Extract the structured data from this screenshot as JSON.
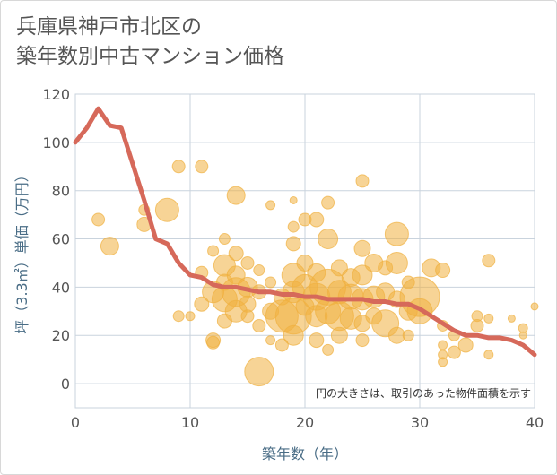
{
  "title_line1": "兵庫県神戸市北区の",
  "title_line2": "築年数別中古マンション価格",
  "chart_data": {
    "type": "scatter",
    "title": "兵庫県神戸市北区の築年数別中古マンション価格",
    "xlabel": "築年数（年）",
    "ylabel": "坪（3.3㎡）単価（万円）",
    "xlim": [
      0,
      40
    ],
    "ylim": [
      -10,
      120
    ],
    "xticks": [
      0,
      10,
      20,
      30,
      40
    ],
    "yticks": [
      0,
      20,
      40,
      60,
      80,
      100,
      120
    ],
    "grid": true,
    "note": "円の大きさは、取引のあった物件面積を示す",
    "colors": {
      "bubble": "#f0b040",
      "line": "#d6695a",
      "grid": "#c9d3dd"
    },
    "line": {
      "x": [
        0,
        1,
        2,
        3,
        4,
        5,
        6,
        7,
        8,
        9,
        10,
        11,
        12,
        13,
        14,
        15,
        16,
        17,
        18,
        19,
        20,
        21,
        22,
        23,
        24,
        25,
        26,
        27,
        28,
        29,
        30,
        31,
        32,
        33,
        34,
        35,
        36,
        37,
        38,
        39,
        40
      ],
      "y": [
        100,
        106,
        114,
        107,
        106,
        91,
        76,
        60,
        58,
        50,
        45,
        44,
        41,
        40,
        40,
        39,
        38,
        38,
        37,
        37,
        36,
        36,
        35,
        35,
        35,
        35,
        34,
        34,
        33,
        33,
        31,
        28,
        25,
        22,
        20,
        20,
        19,
        19,
        18,
        16,
        12
      ]
    },
    "bubbles": [
      {
        "x": 2,
        "y": 68,
        "s": 7
      },
      {
        "x": 3,
        "y": 57,
        "s": 10
      },
      {
        "x": 6,
        "y": 66,
        "s": 8
      },
      {
        "x": 6,
        "y": 72,
        "s": 6
      },
      {
        "x": 8,
        "y": 72,
        "s": 13
      },
      {
        "x": 9,
        "y": 90,
        "s": 7
      },
      {
        "x": 11,
        "y": 90,
        "s": 7
      },
      {
        "x": 9,
        "y": 28,
        "s": 6
      },
      {
        "x": 10,
        "y": 28,
        "s": 5
      },
      {
        "x": 11,
        "y": 33,
        "s": 8
      },
      {
        "x": 11,
        "y": 46,
        "s": 7
      },
      {
        "x": 12,
        "y": 55,
        "s": 6
      },
      {
        "x": 12,
        "y": 38,
        "s": 12
      },
      {
        "x": 12,
        "y": 18,
        "s": 8
      },
      {
        "x": 12,
        "y": 17,
        "s": 7
      },
      {
        "x": 13,
        "y": 49,
        "s": 12
      },
      {
        "x": 13,
        "y": 42,
        "s": 9
      },
      {
        "x": 13,
        "y": 35,
        "s": 14
      },
      {
        "x": 13,
        "y": 60,
        "s": 6
      },
      {
        "x": 13,
        "y": 26,
        "s": 8
      },
      {
        "x": 14,
        "y": 78,
        "s": 10
      },
      {
        "x": 14,
        "y": 54,
        "s": 8
      },
      {
        "x": 14,
        "y": 45,
        "s": 10
      },
      {
        "x": 14,
        "y": 38,
        "s": 16
      },
      {
        "x": 14,
        "y": 30,
        "s": 12
      },
      {
        "x": 15,
        "y": 50,
        "s": 7
      },
      {
        "x": 15,
        "y": 40,
        "s": 11
      },
      {
        "x": 15,
        "y": 33,
        "s": 9
      },
      {
        "x": 15,
        "y": 28,
        "s": 7
      },
      {
        "x": 16,
        "y": 47,
        "s": 6
      },
      {
        "x": 16,
        "y": 38,
        "s": 8
      },
      {
        "x": 16,
        "y": 24,
        "s": 7
      },
      {
        "x": 16,
        "y": 5,
        "s": 16
      },
      {
        "x": 17,
        "y": 74,
        "s": 5
      },
      {
        "x": 17,
        "y": 42,
        "s": 6
      },
      {
        "x": 17,
        "y": 30,
        "s": 9
      },
      {
        "x": 17,
        "y": 18,
        "s": 5
      },
      {
        "x": 18,
        "y": 36,
        "s": 9
      },
      {
        "x": 18,
        "y": 28,
        "s": 18
      },
      {
        "x": 18,
        "y": 16,
        "s": 7
      },
      {
        "x": 19,
        "y": 45,
        "s": 13
      },
      {
        "x": 19,
        "y": 38,
        "s": 12
      },
      {
        "x": 19,
        "y": 28,
        "s": 20
      },
      {
        "x": 19,
        "y": 20,
        "s": 11
      },
      {
        "x": 19,
        "y": 58,
        "s": 8
      },
      {
        "x": 19,
        "y": 65,
        "s": 6
      },
      {
        "x": 19,
        "y": 76,
        "s": 4
      },
      {
        "x": 20,
        "y": 50,
        "s": 9
      },
      {
        "x": 20,
        "y": 40,
        "s": 14
      },
      {
        "x": 20,
        "y": 32,
        "s": 10
      },
      {
        "x": 20,
        "y": 68,
        "s": 7
      },
      {
        "x": 21,
        "y": 68,
        "s": 8
      },
      {
        "x": 21,
        "y": 46,
        "s": 10
      },
      {
        "x": 21,
        "y": 36,
        "s": 15
      },
      {
        "x": 21,
        "y": 28,
        "s": 12
      },
      {
        "x": 21,
        "y": 18,
        "s": 8
      },
      {
        "x": 22,
        "y": 75,
        "s": 7
      },
      {
        "x": 22,
        "y": 60,
        "s": 11
      },
      {
        "x": 22,
        "y": 40,
        "s": 20
      },
      {
        "x": 22,
        "y": 30,
        "s": 14
      },
      {
        "x": 22,
        "y": 14,
        "s": 6
      },
      {
        "x": 23,
        "y": 48,
        "s": 9
      },
      {
        "x": 23,
        "y": 38,
        "s": 13
      },
      {
        "x": 23,
        "y": 28,
        "s": 16
      },
      {
        "x": 23,
        "y": 20,
        "s": 9
      },
      {
        "x": 24,
        "y": 44,
        "s": 10
      },
      {
        "x": 24,
        "y": 36,
        "s": 14
      },
      {
        "x": 24,
        "y": 27,
        "s": 12
      },
      {
        "x": 25,
        "y": 84,
        "s": 7
      },
      {
        "x": 25,
        "y": 56,
        "s": 9
      },
      {
        "x": 25,
        "y": 45,
        "s": 11
      },
      {
        "x": 25,
        "y": 35,
        "s": 12
      },
      {
        "x": 25,
        "y": 25,
        "s": 9
      },
      {
        "x": 25,
        "y": 18,
        "s": 7
      },
      {
        "x": 26,
        "y": 50,
        "s": 10
      },
      {
        "x": 26,
        "y": 36,
        "s": 12
      },
      {
        "x": 26,
        "y": 28,
        "s": 9
      },
      {
        "x": 27,
        "y": 48,
        "s": 8
      },
      {
        "x": 27,
        "y": 38,
        "s": 10
      },
      {
        "x": 27,
        "y": 25,
        "s": 15
      },
      {
        "x": 28,
        "y": 62,
        "s": 13
      },
      {
        "x": 28,
        "y": 50,
        "s": 12
      },
      {
        "x": 28,
        "y": 35,
        "s": 9
      },
      {
        "x": 28,
        "y": 20,
        "s": 9
      },
      {
        "x": 29,
        "y": 42,
        "s": 7
      },
      {
        "x": 29,
        "y": 30,
        "s": 10
      },
      {
        "x": 29,
        "y": 20,
        "s": 6
      },
      {
        "x": 30,
        "y": 36,
        "s": 22
      },
      {
        "x": 30,
        "y": 30,
        "s": 14
      },
      {
        "x": 31,
        "y": 48,
        "s": 10
      },
      {
        "x": 32,
        "y": 47,
        "s": 8
      },
      {
        "x": 32,
        "y": 24,
        "s": 6
      },
      {
        "x": 32,
        "y": 16,
        "s": 5
      },
      {
        "x": 32,
        "y": 12,
        "s": 5
      },
      {
        "x": 32,
        "y": 9,
        "s": 5
      },
      {
        "x": 33,
        "y": 20,
        "s": 6
      },
      {
        "x": 33,
        "y": 13,
        "s": 7
      },
      {
        "x": 34,
        "y": 16,
        "s": 8
      },
      {
        "x": 35,
        "y": 28,
        "s": 6
      },
      {
        "x": 35,
        "y": 24,
        "s": 7
      },
      {
        "x": 36,
        "y": 51,
        "s": 7
      },
      {
        "x": 36,
        "y": 12,
        "s": 5
      },
      {
        "x": 36,
        "y": 27,
        "s": 5
      },
      {
        "x": 38,
        "y": 27,
        "s": 4
      },
      {
        "x": 39,
        "y": 23,
        "s": 5
      },
      {
        "x": 40,
        "y": 32,
        "s": 4
      },
      {
        "x": 39,
        "y": 20,
        "s": 4
      }
    ]
  }
}
